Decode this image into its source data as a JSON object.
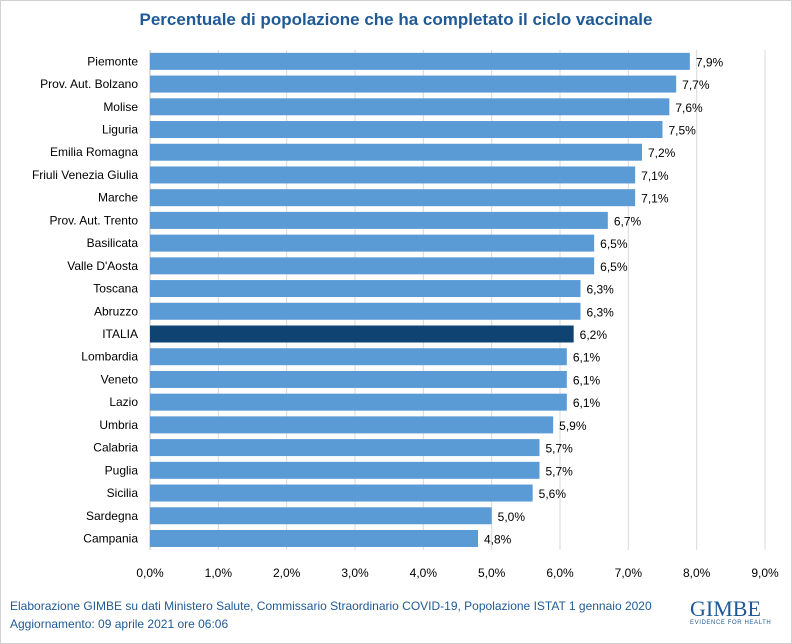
{
  "chart_data": {
    "type": "bar",
    "orientation": "horizontal",
    "title": "Percentuale di popolazione che ha completato il ciclo vaccinale",
    "categories": [
      "Piemonte",
      "Prov. Aut. Bolzano",
      "Molise",
      "Liguria",
      "Emilia Romagna",
      "Friuli Venezia Giulia",
      "Marche",
      "Prov. Aut. Trento",
      "Basilicata",
      "Valle D'Aosta",
      "Toscana",
      "Abruzzo",
      "ITALIA",
      "Lombardia",
      "Veneto",
      "Lazio",
      "Umbria",
      "Calabria",
      "Puglia",
      "Sicilia",
      "Sardegna",
      "Campania"
    ],
    "values": [
      7.9,
      7.7,
      7.6,
      7.5,
      7.2,
      7.1,
      7.1,
      6.7,
      6.5,
      6.5,
      6.3,
      6.3,
      6.2,
      6.1,
      6.1,
      6.1,
      5.9,
      5.7,
      5.7,
      5.6,
      5.0,
      4.8
    ],
    "data_labels": [
      "7,9%",
      "7,7%",
      "7,6%",
      "7,5%",
      "7,2%",
      "7,1%",
      "7,1%",
      "6,7%",
      "6,5%",
      "6,5%",
      "6,3%",
      "6,3%",
      "6,2%",
      "6,1%",
      "6,1%",
      "6,1%",
      "5,9%",
      "5,7%",
      "5,7%",
      "5,6%",
      "5,0%",
      "4,8%"
    ],
    "xlim": [
      0,
      9
    ],
    "x_ticks": [
      "0,0%",
      "1,0%",
      "2,0%",
      "3,0%",
      "4,0%",
      "5,0%",
      "6,0%",
      "7,0%",
      "8,0%",
      "9,0%"
    ],
    "grid": true,
    "colors": {
      "bar": "#5b9bd5",
      "highlight": "#0f4371",
      "highlight_category": "ITALIA"
    }
  },
  "footer": {
    "source": "Elaborazione GIMBE su dati Ministero Salute, Commissario  Straordinario COVID-19, Popolazione  ISTAT 1 gennaio 2020",
    "updated": "Aggiornamento: 09 aprile 2021 ore 06:06"
  },
  "logo": {
    "name": "GIMBE",
    "tagline": "EVIDENCE FOR HEALTH"
  }
}
